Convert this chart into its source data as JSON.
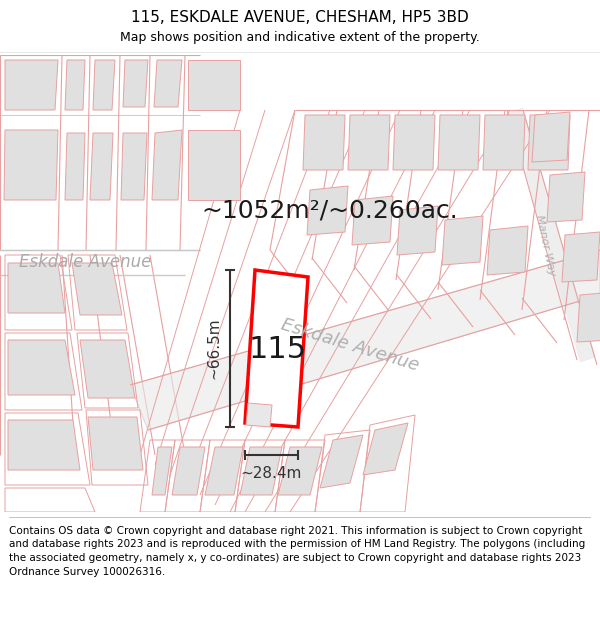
{
  "title": "115, ESKDALE AVENUE, CHESHAM, HP5 3BD",
  "subtitle": "Map shows position and indicative extent of the property.",
  "area_label": "~1052m²/~0.260ac.",
  "number_label": "115",
  "width_label": "~28.4m",
  "height_label": "~66.5m",
  "road_label_left": "Eskdale Avenue",
  "road_label_diag": "Eskdale Avenue",
  "road_label_right": "Manor Way",
  "footer": "Contains OS data © Crown copyright and database right 2021. This information is subject to Crown copyright and database rights 2023 and is reproduced with the permission of HM Land Registry. The polygons (including the associated geometry, namely x, y co-ordinates) are subject to Crown copyright and database rights 2023 Ordnance Survey 100026316.",
  "bg_color": "#ffffff",
  "map_bg": "#ffffff",
  "highlight_color": "#ff0000",
  "pink_color": "#e8a0a0",
  "gray_color": "#c8c8c8",
  "bldg_fill": "#e0e0e0",
  "title_fontsize": 11,
  "subtitle_fontsize": 9,
  "footer_fontsize": 7.5
}
